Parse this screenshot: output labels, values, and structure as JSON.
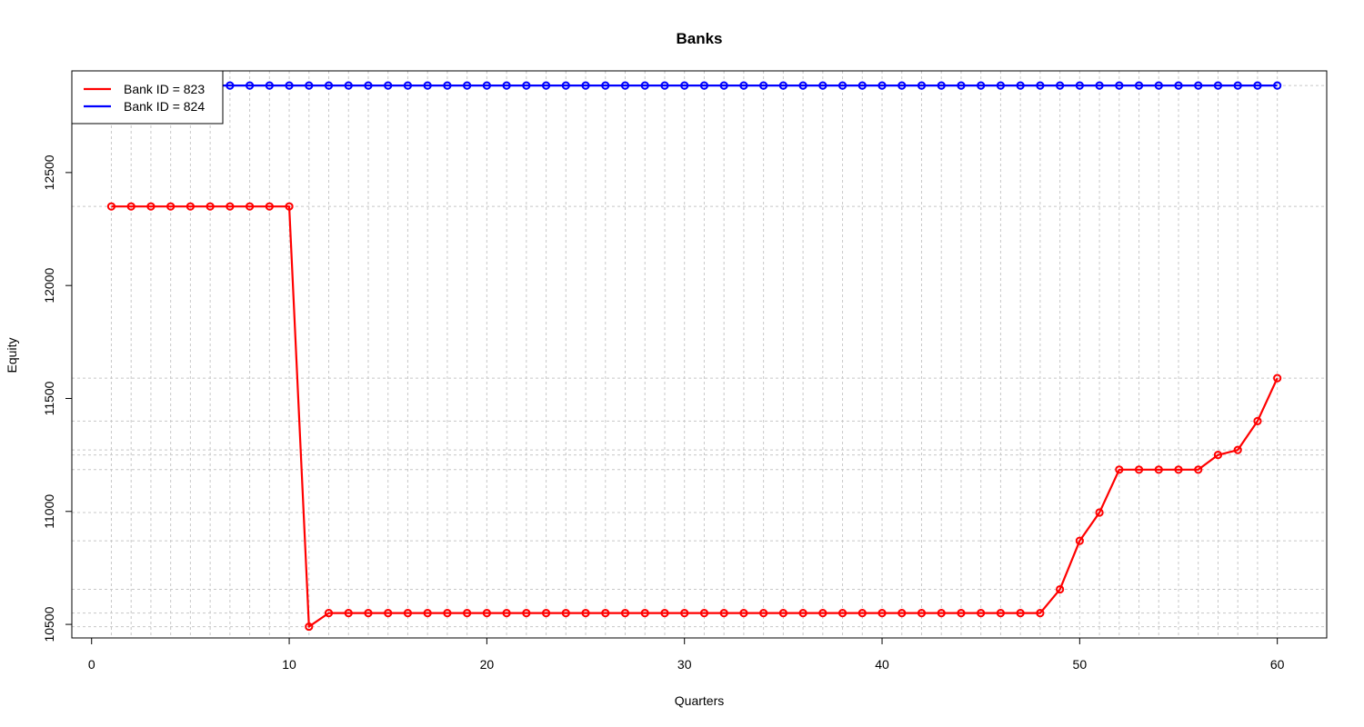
{
  "chart_data": {
    "type": "line",
    "title": "Banks",
    "xlabel": "Quarters",
    "ylabel": "Equity",
    "xlim": [
      -1,
      62.5
    ],
    "ylim": [
      10440,
      12950
    ],
    "x_ticks": [
      0,
      10,
      20,
      30,
      40,
      50,
      60
    ],
    "y_ticks": [
      10500,
      11000,
      11500,
      12000,
      12500
    ],
    "grid": true,
    "legend_position": "top-left",
    "x": [
      1,
      2,
      3,
      4,
      5,
      6,
      7,
      8,
      9,
      10,
      11,
      12,
      13,
      14,
      15,
      16,
      17,
      18,
      19,
      20,
      21,
      22,
      23,
      24,
      25,
      26,
      27,
      28,
      29,
      30,
      31,
      32,
      33,
      34,
      35,
      36,
      37,
      38,
      39,
      40,
      41,
      42,
      43,
      44,
      45,
      46,
      47,
      48,
      49,
      50,
      51,
      52,
      53,
      54,
      55,
      56,
      57,
      58,
      59,
      60
    ],
    "series": [
      {
        "name": "Bank ID = 823",
        "color": "#ff0000",
        "values": [
          12350,
          12350,
          12350,
          12350,
          12350,
          12350,
          12350,
          12350,
          12350,
          12350,
          10490,
          10550,
          10550,
          10550,
          10550,
          10550,
          10550,
          10550,
          10550,
          10550,
          10550,
          10550,
          10550,
          10550,
          10550,
          10550,
          10550,
          10550,
          10550,
          10550,
          10550,
          10550,
          10550,
          10550,
          10550,
          10550,
          10550,
          10550,
          10550,
          10550,
          10550,
          10550,
          10550,
          10550,
          10550,
          10550,
          10550,
          10550,
          10655,
          10870,
          10995,
          11185,
          11185,
          11185,
          11185,
          11185,
          11250,
          11272,
          11400,
          11590
        ]
      },
      {
        "name": "Bank ID = 824",
        "color": "#0000ff",
        "values": [
          12885,
          12885,
          12885,
          12885,
          12885,
          12885,
          12885,
          12885,
          12885,
          12885,
          12885,
          12885,
          12885,
          12885,
          12885,
          12885,
          12885,
          12885,
          12885,
          12885,
          12885,
          12885,
          12885,
          12885,
          12885,
          12885,
          12885,
          12885,
          12885,
          12885,
          12885,
          12885,
          12885,
          12885,
          12885,
          12885,
          12885,
          12885,
          12885,
          12885,
          12885,
          12885,
          12885,
          12885,
          12885,
          12885,
          12885,
          12885,
          12885,
          12885,
          12885,
          12885,
          12885,
          12885,
          12885,
          12885,
          12885,
          12885,
          12885,
          12885
        ]
      }
    ]
  }
}
